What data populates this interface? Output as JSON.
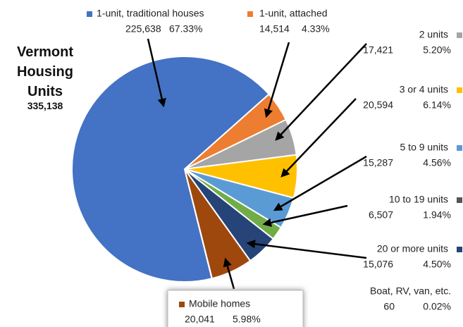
{
  "chart_data": {
    "type": "pie",
    "title": "Vermont Housing Units",
    "subtitle": "335,138",
    "categories": [
      "1-unit, traditional houses",
      "1-unit, attached",
      "2 units",
      "3 or 4 units",
      "5 to 9 units",
      "10 to 19 units",
      "20 or more units",
      "Mobile homes",
      "Boat, RV, van, etc."
    ],
    "values": [
      225638,
      14514,
      17421,
      20594,
      15287,
      6507,
      15076,
      20041,
      60
    ],
    "value_labels": [
      "225,638",
      "14,514",
      "17,421",
      "20,594",
      "15,287",
      "6,507",
      "15,076",
      "20,041",
      "60"
    ],
    "percent_labels": [
      "67.33%",
      "4.33%",
      "5.20%",
      "6.14%",
      "4.56%",
      "1.94%",
      "4.50%",
      "5.98%",
      "0.02%"
    ],
    "colors": [
      "#4472c4",
      "#ed7d31",
      "#a5a5a5",
      "#ffc000",
      "#5b9bd5",
      "#70ad47",
      "#264478",
      "#9e480e",
      "#997300"
    ]
  }
}
